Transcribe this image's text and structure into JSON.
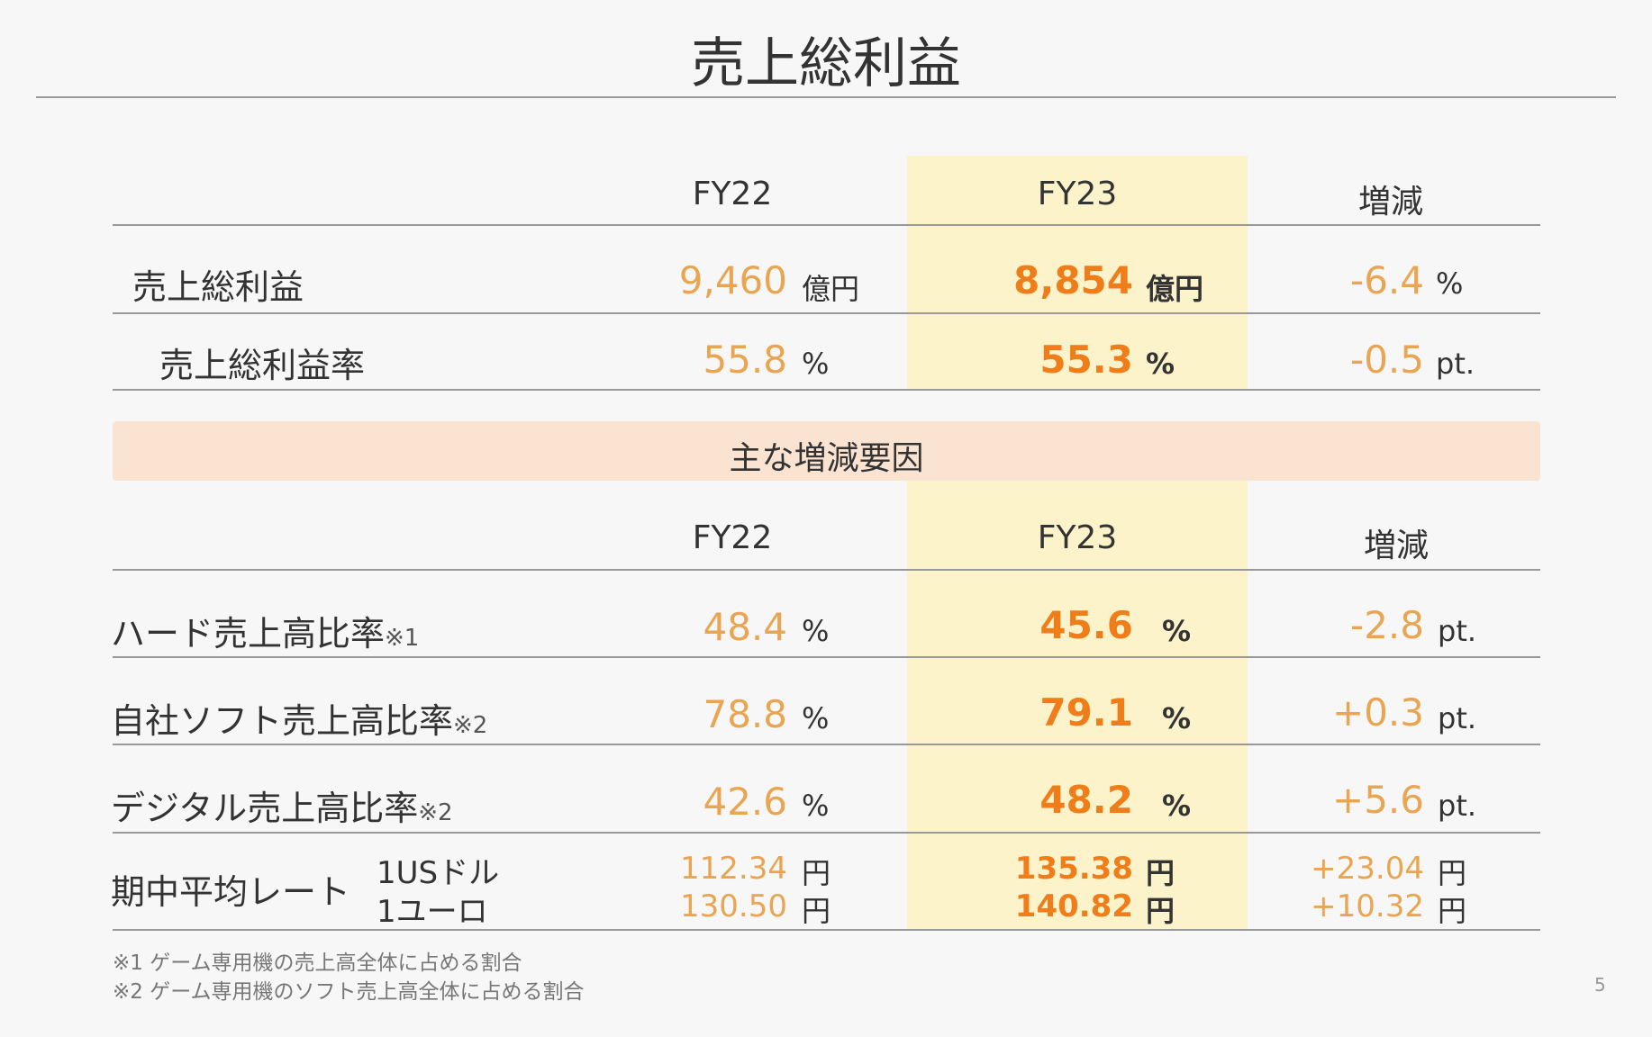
{
  "title": "売上総利益",
  "top_table": {
    "headers": [
      "FY22",
      "FY23",
      "増減"
    ],
    "rows": [
      {
        "label": "売上総利益",
        "fy22": "9,460",
        "fy22_unit": "億円",
        "fy23": "8,854",
        "fy23_unit": "億円",
        "change": "-6.4",
        "change_unit": "%"
      },
      {
        "label": "売上総利益率",
        "fy22": "55.8",
        "fy22_unit": "%",
        "fy23": "55.3",
        "fy23_unit": "%",
        "change": "-0.5",
        "change_unit": "pt."
      }
    ]
  },
  "factors_banner": "主な増減要因",
  "bottom_table": {
    "headers": [
      "FY22",
      "FY23",
      "増減"
    ],
    "rows": [
      {
        "label": "ハード売上高比率",
        "note": "※1",
        "fy22": "48.4",
        "fy22_unit": "%",
        "fy23": "45.6",
        "fy23_unit": "%",
        "change": "-2.8",
        "change_unit": "pt."
      },
      {
        "label": "自社ソフト売上高比率",
        "note": "※2",
        "fy22": "78.8",
        "fy22_unit": "%",
        "fy23": "79.1",
        "fy23_unit": "%",
        "change": "+0.3",
        "change_unit": "pt."
      },
      {
        "label": "デジタル売上高比率",
        "note": "※2",
        "fy22": "42.6",
        "fy22_unit": "%",
        "fy23": "48.2",
        "fy23_unit": "%",
        "change": "+5.6",
        "change_unit": "pt."
      }
    ],
    "rate": {
      "label": "期中平均レート",
      "items": [
        {
          "currency": "1USドル",
          "fy22": "112.34",
          "fy23": "135.38",
          "change": "+23.04",
          "unit": "円"
        },
        {
          "currency": "1ユーロ",
          "fy22": "130.50",
          "fy23": "140.82",
          "change": "+10.32",
          "unit": "円"
        }
      ]
    }
  },
  "footnotes": [
    "※1 ゲーム専用機の売上高全体に占める割合",
    "※2 ゲーム専用機のソフト売上高全体に占める割合"
  ],
  "page_number": "5",
  "colors": {
    "fy22_value": "#e9a552",
    "fy23_value": "#ee7d1a",
    "highlight": "#fdf3cb",
    "banner": "#fbe3d2"
  }
}
